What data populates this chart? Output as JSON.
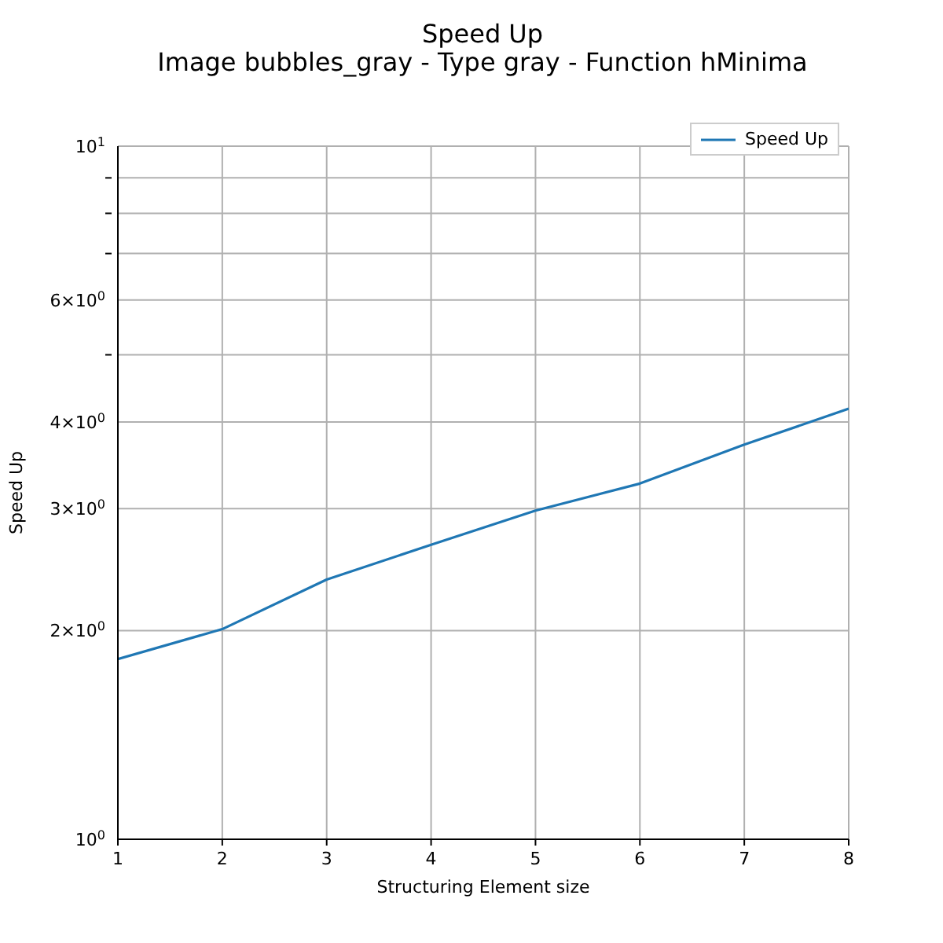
{
  "chart_data": {
    "type": "line",
    "title": "Speed Up",
    "subtitle": "Image bubbles_gray - Type gray - Function hMinima",
    "xlabel": "Structuring Element size",
    "ylabel": "Speed Up",
    "x": [
      1,
      2,
      3,
      4,
      5,
      6,
      7,
      8
    ],
    "series": [
      {
        "name": "Speed Up",
        "color": "#1f77b4",
        "values": [
          1.82,
          2.01,
          2.37,
          2.66,
          2.98,
          3.26,
          3.71,
          4.18
        ]
      }
    ],
    "xlim": [
      1,
      8
    ],
    "xticks": [
      1,
      2,
      3,
      4,
      5,
      6,
      7,
      8
    ],
    "ylim": [
      1,
      10
    ],
    "yticks": [
      {
        "value": 1,
        "label": "10$^{0}$"
      },
      {
        "value": 2,
        "label": "2×10$^{0}$"
      },
      {
        "value": 3,
        "label": "3×10$^{0}$"
      },
      {
        "value": 4,
        "label": "4×10$^{0}$"
      },
      {
        "value": 5,
        "label": null
      },
      {
        "value": 6,
        "label": "6×10$^{0}$"
      },
      {
        "value": 7,
        "label": null
      },
      {
        "value": 8,
        "label": null
      },
      {
        "value": 9,
        "label": null
      },
      {
        "value": 10,
        "label": "10$^{1}$"
      }
    ],
    "log": "y",
    "grid": true,
    "legend": "top right",
    "marker": "none",
    "line_style": "solid"
  }
}
